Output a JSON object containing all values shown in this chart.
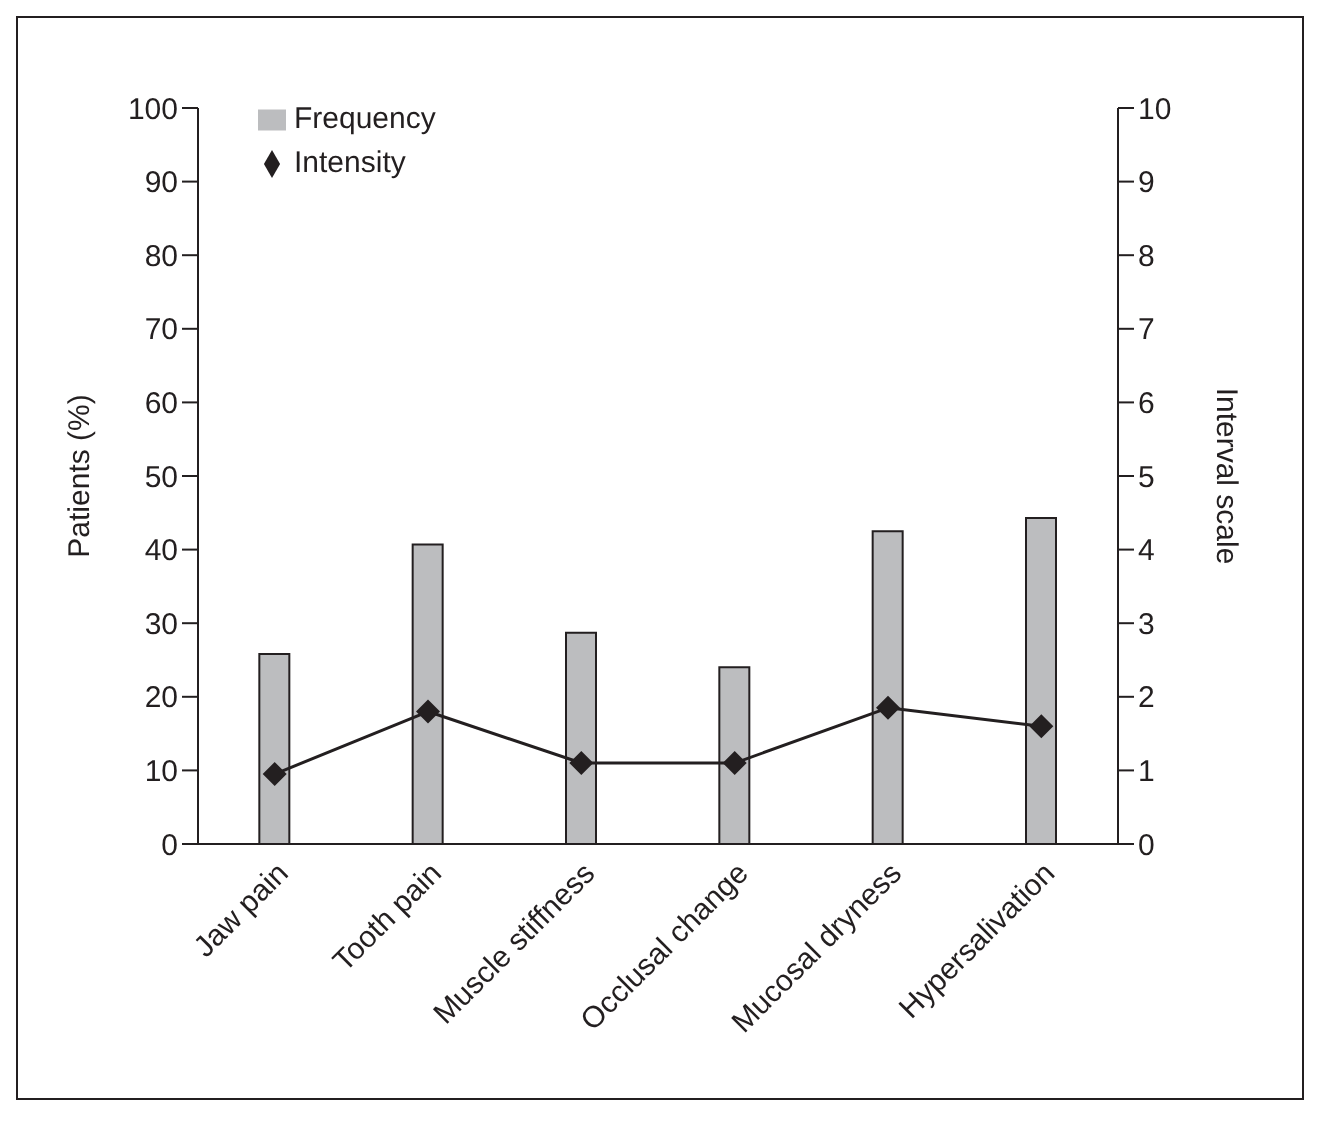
{
  "chart_data": {
    "type": "bar",
    "categories": [
      "Jaw pain",
      "Tooth pain",
      "Muscle stiffness",
      "Occlusal change",
      "Mucosal dryness",
      "Hypersalivation"
    ],
    "series": [
      {
        "name": "Frequency",
        "color": "#bcbdbf",
        "values": [
          25.8,
          40.7,
          28.7,
          24,
          42.5,
          44.3
        ]
      },
      {
        "name": "Intensity",
        "type": "line",
        "axis": "y2",
        "color": "#231f20",
        "marker": "diamond",
        "values": [
          0.95,
          1.8,
          1.1,
          1.1,
          1.85,
          1.6
        ]
      }
    ],
    "ylabel": "Patients (%)",
    "y2label": "Interval scale",
    "ylim": [
      0,
      100
    ],
    "yticks": [
      0,
      10,
      20,
      30,
      40,
      50,
      60,
      70,
      80,
      90,
      100
    ],
    "y2lim": [
      0,
      10
    ],
    "y2ticks": [
      0,
      1,
      2,
      3,
      4,
      5,
      6,
      7,
      8,
      9,
      10
    ],
    "grid": false,
    "legend": "top left"
  }
}
